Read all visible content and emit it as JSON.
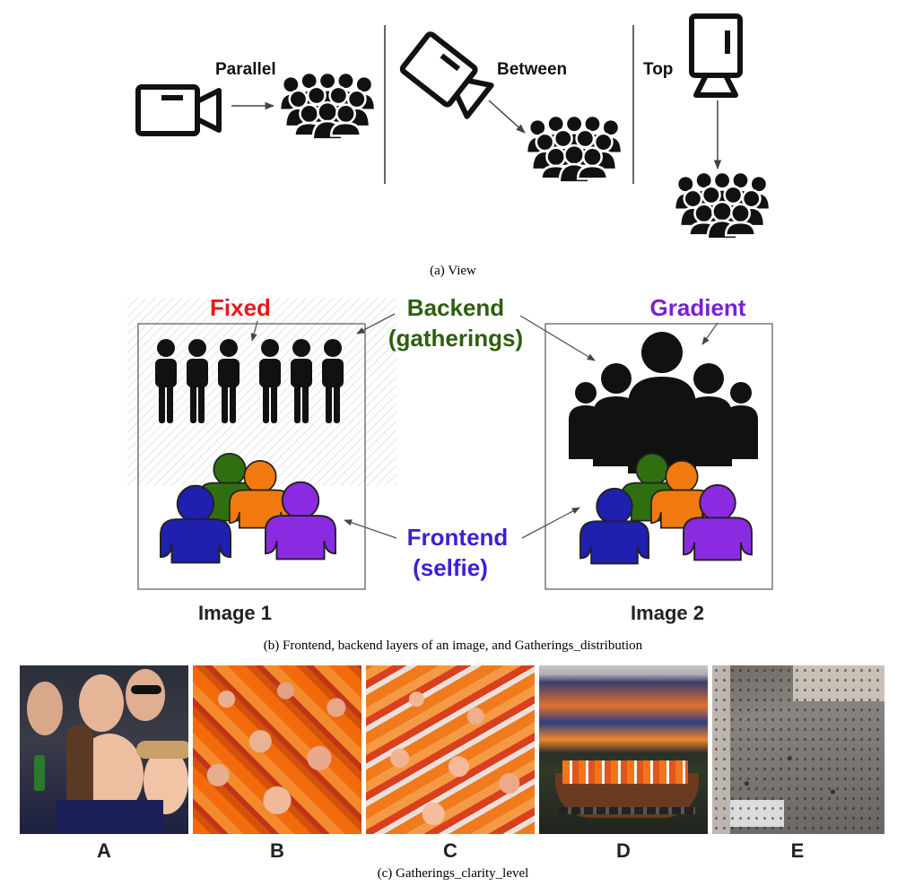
{
  "panel_a": {
    "labels": {
      "parallel": "Parallel",
      "between": "Between",
      "top": "Top"
    },
    "caption": "(a)  View"
  },
  "panel_b": {
    "labels": {
      "fixed": "Fixed",
      "backend_line1": "Backend",
      "backend_line2": "(gatherings)",
      "gradient": "Gradient",
      "frontend_line1": "Frontend",
      "frontend_line2": "(selfie)",
      "image1": "Image 1",
      "image2": "Image 2"
    },
    "caption": "(b)  Frontend, backend layers of an image, and Gatherings_distribution"
  },
  "panel_c": {
    "photos": [
      {
        "letter": "A"
      },
      {
        "letter": "B"
      },
      {
        "letter": "C"
      },
      {
        "letter": "D"
      },
      {
        "letter": "E"
      }
    ],
    "caption": "(c)  Gatherings_clarity_level"
  },
  "colors": {
    "fixed": "#e41a1c",
    "backend": "#2e5e10",
    "gradient": "#7a1fd8",
    "frontend": "#3d1fd8",
    "selfie_blue": "#1f1fb0",
    "selfie_green": "#2f6f10",
    "selfie_orange": "#f07a10",
    "selfie_purple": "#8a2be2",
    "orange_crowd": "#f26a0c"
  },
  "icons": [
    "video-camera-icon",
    "crowd-icon",
    "arrow-icon",
    "person-icon"
  ]
}
